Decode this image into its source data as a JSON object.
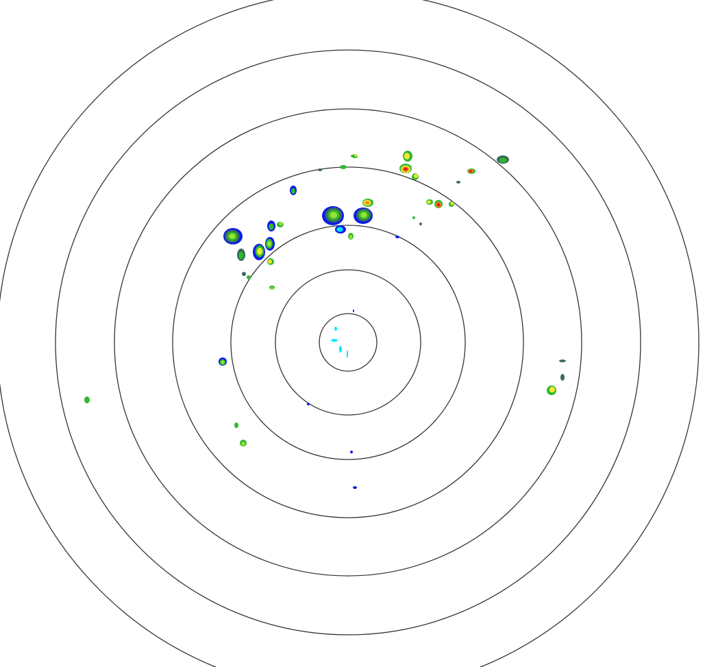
{
  "radar": {
    "range_ring_count": 7,
    "ring_color": "#333333",
    "background": "#ffffff",
    "reflectivity_colors": {
      "very_light": "#00e5ff",
      "light": "#0a1ee6",
      "weak": "#3a6b5a",
      "moderate": "#2fb82f",
      "moderate_high": "#9be032",
      "high": "#f5e632",
      "very_high": "#f08c1e",
      "intense": "#e61e1e"
    }
  }
}
